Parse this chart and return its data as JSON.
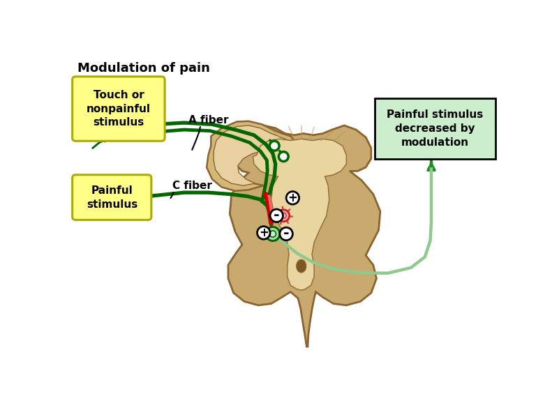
{
  "title": "Modulation of pain",
  "title_fontsize": 13,
  "title_fontweight": "bold",
  "bg_color": "#ffffff",
  "cord_outer_fill": "#c8a96e",
  "cord_outer_edge": "#8B6330",
  "cord_inner_fill": "#e8d5a0",
  "cord_inner_edge": "#9B7340",
  "touch_box_text": "Touch or\nnonpainful\nstimulus",
  "touch_box_color": "#ffff88",
  "touch_box_edge": "#aaaa00",
  "painful_box_text": "Painful\nstimulus",
  "painful_box_color": "#ffff88",
  "painful_box_edge": "#aaaa00",
  "right_box_text": "Painful stimulus\ndecreased by\nmodulation",
  "right_box_color": "#cceecc",
  "right_box_edge": "#000000",
  "a_fiber_label": "A fiber",
  "c_fiber_label": "C fiber",
  "green_dark": "#006600",
  "green_mid": "#228B22",
  "green_light": "#90c890",
  "red_dark": "#cc0000",
  "red_light": "#ee6666",
  "neuron_red_fill": "#ff9999",
  "neuron_red_edge": "#cc2222",
  "neuron_green_fill": "#aaddaa",
  "neuron_green_edge": "#006600"
}
